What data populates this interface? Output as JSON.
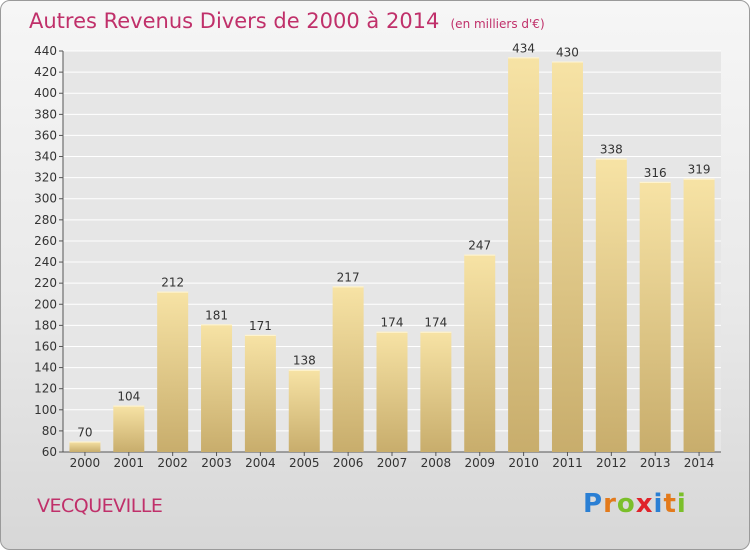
{
  "chart_data": {
    "type": "bar",
    "title": "Autres Revenus Divers de 2000 à 2014",
    "unit_note": "(en milliers d'€)",
    "categories": [
      "2000",
      "2001",
      "2002",
      "2003",
      "2004",
      "2005",
      "2006",
      "2007",
      "2008",
      "2009",
      "2010",
      "2011",
      "2012",
      "2013",
      "2014"
    ],
    "values": [
      70,
      104,
      212,
      181,
      171,
      138,
      217,
      174,
      174,
      247,
      434,
      430,
      338,
      316,
      319
    ],
    "ylim": [
      60,
      440
    ],
    "yticks": [
      60,
      80,
      100,
      120,
      140,
      160,
      180,
      200,
      220,
      240,
      260,
      280,
      300,
      320,
      340,
      360,
      380,
      400,
      420,
      440
    ],
    "grid": true,
    "xlabel": "",
    "ylabel": "",
    "colors": {
      "bar_top": "#f7e3a5",
      "bar_bottom": "#c8ad6c",
      "title": "#c0306a"
    }
  },
  "footer": {
    "place": "VECQUEVILLE",
    "logo": [
      "P",
      "r",
      "o",
      "x",
      "i",
      "t",
      "i"
    ],
    "logo_colors": [
      "#2a7fd4",
      "#e37a1b",
      "#7bbf2a",
      "#e0232a",
      "#2a7fd4",
      "#e37a1b",
      "#7bbf2a"
    ]
  }
}
